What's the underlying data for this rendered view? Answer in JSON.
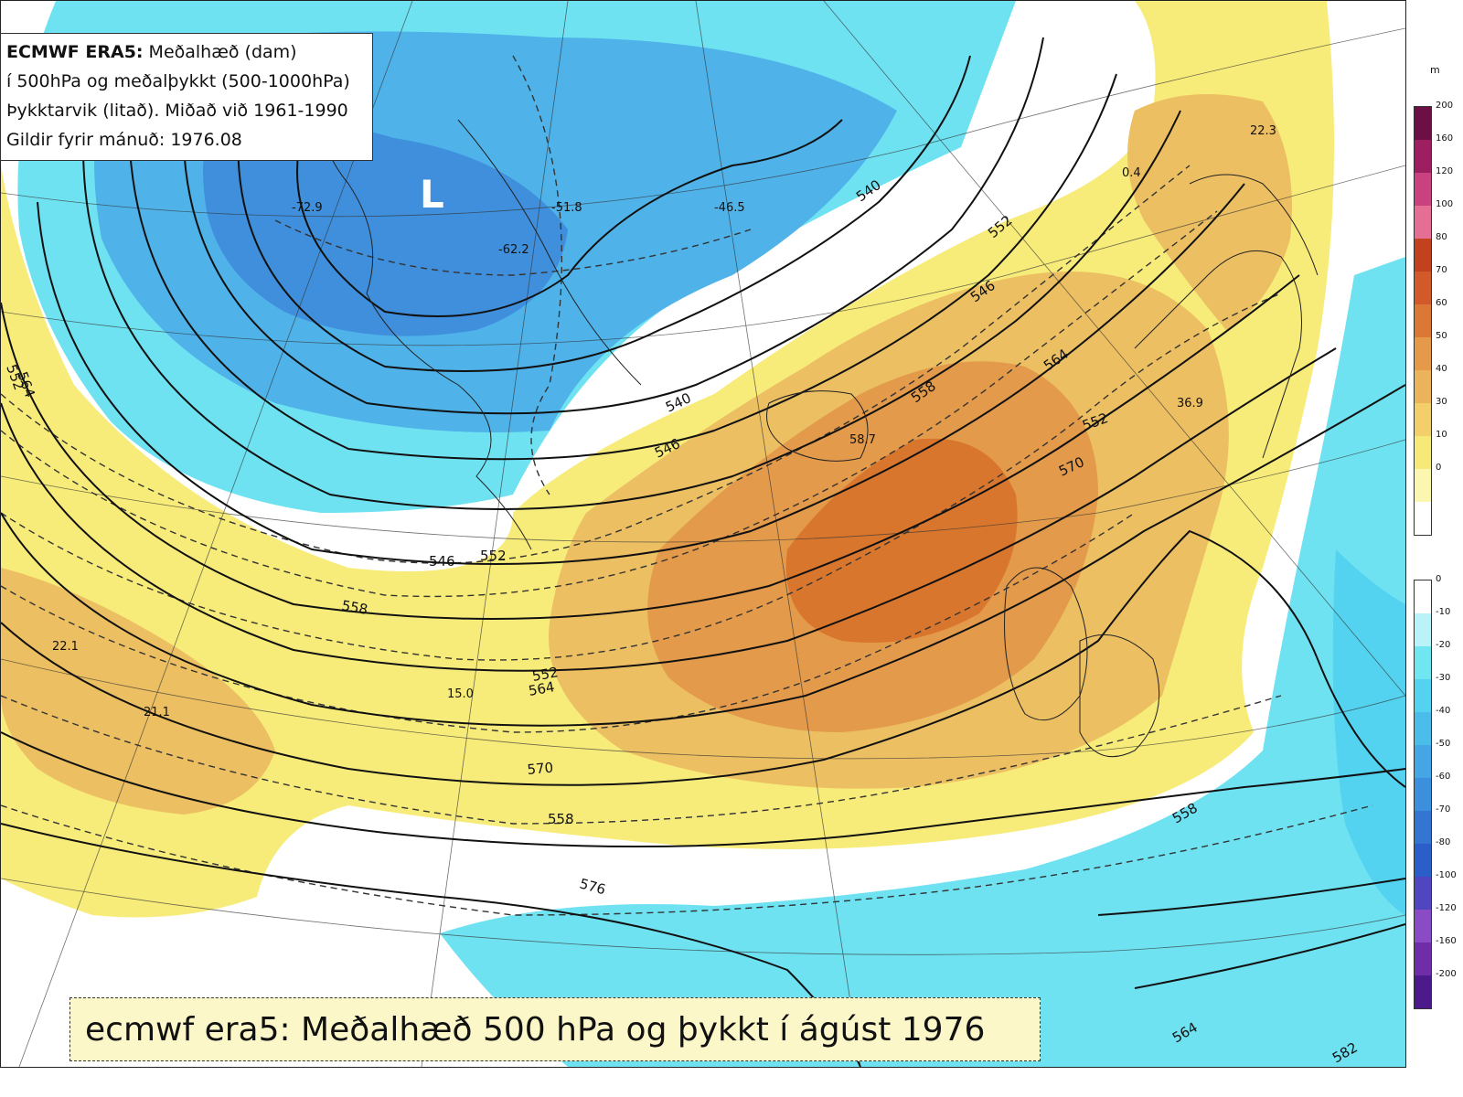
{
  "info": {
    "line1_bold": "ECMWF ERA5:",
    "line1_rest": " Meðalhæð (dam)",
    "line2": "í 500hPa og meðalþykkt (500-1000hPa)",
    "line3": "Þykktarvik (litað). Miðað við 1961-1990",
    "line4": "Gildir fyrir mánuð: 1976.08"
  },
  "caption": "ecmwf era5: Meðalhæð 500 hPa og þykkt í ágúst 1976",
  "legend": {
    "unit": "m",
    "upper_ticks": [
      "200",
      "160",
      "120",
      "100",
      "80",
      "70",
      "60",
      "50",
      "40",
      "30",
      "10",
      "0"
    ],
    "upper_colors": [
      "#6b0f45",
      "#9e1e62",
      "#c9417e",
      "#e56e94",
      "#c2411f",
      "#d1592a",
      "#dc7835",
      "#e49a48",
      "#ebb45a",
      "#f2cf6a",
      "#f7e977",
      "#fbf7b0",
      "#ffffff"
    ],
    "lower_ticks": [
      "0",
      "-10",
      "-20",
      "-30",
      "-40",
      "-50",
      "-60",
      "-70",
      "-80",
      "-100",
      "-120",
      "-160",
      "-200"
    ],
    "lower_colors": [
      "#ffffff",
      "#baf3f7",
      "#6fe6f0",
      "#53d3f0",
      "#4bbdea",
      "#44a6e4",
      "#3c8fdc",
      "#3475d2",
      "#2c5ec9",
      "#5047c0",
      "#8a4cc4",
      "#6f2da8",
      "#4c1a8a"
    ]
  },
  "map": {
    "low_marker": "L",
    "height_labels": [
      "540",
      "552",
      "546",
      "564",
      "558",
      "552",
      "570",
      "540",
      "546",
      "546",
      "552",
      "558",
      "552",
      "564",
      "570",
      "558",
      "576",
      "558",
      "564",
      "582",
      "552",
      "564"
    ],
    "anomaly_labels": [
      "-72.9",
      "-51.8",
      "-46.5",
      "-62.2",
      "0.4",
      "22.3",
      "58.7",
      "36.9",
      "22.1",
      "21.1",
      "15.0"
    ],
    "colors": {
      "blue_dark": "#3f8fdc",
      "blue_mid": "#4fb3ea",
      "blue_light": "#6fe2f2",
      "yellow": "#f7ec7a",
      "orange_light": "#ecbf62",
      "orange": "#e39a4a",
      "orange_dark": "#d9762e"
    }
  }
}
